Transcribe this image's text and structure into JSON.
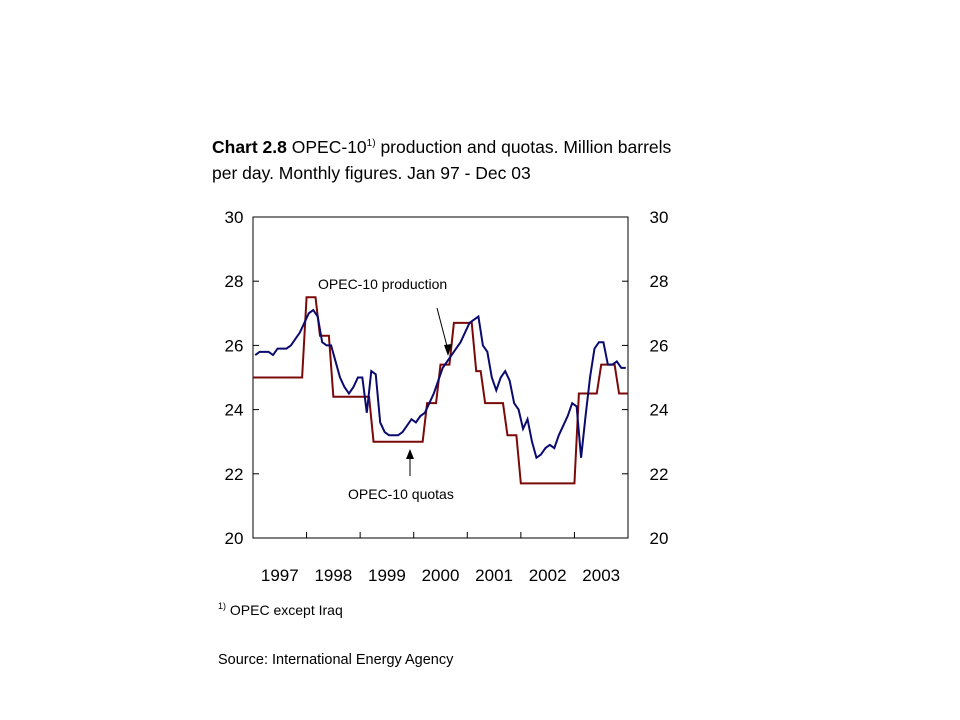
{
  "title": {
    "bold": "Chart 2.8",
    "pre": "OPEC-10",
    "sup": "1)",
    "rest": "production and quotas. Million barrels per day. Monthly figures. Jan 97 - Dec 03"
  },
  "footnote": {
    "sup": "1)",
    "text": "OPEC except Iraq"
  },
  "source": "Source: International Energy Agency",
  "colors": {
    "production": "#0a0a6e",
    "quotas": "#7a0a0a",
    "axis": "#000000"
  },
  "chart_data": {
    "type": "line",
    "x_start": "1997-01",
    "x_end": "2003-12",
    "x_ticks": [
      "1997",
      "1998",
      "1999",
      "2000",
      "2001",
      "2002",
      "2003"
    ],
    "y_ticks": [
      20,
      22,
      24,
      26,
      28,
      30
    ],
    "ylim": [
      20,
      30
    ],
    "grid": false,
    "annotations": [
      "OPEC-10 production",
      "OPEC-10 quotas"
    ],
    "series": [
      {
        "name": "OPEC-10 production",
        "values": [
          25.7,
          25.8,
          25.8,
          25.8,
          25.7,
          25.9,
          25.9,
          25.9,
          26.0,
          26.2,
          26.4,
          26.7,
          27.0,
          27.1,
          26.9,
          26.1,
          26.0,
          26.0,
          25.5,
          25.0,
          24.7,
          24.5,
          24.7,
          25.0,
          25.0,
          23.9,
          25.2,
          25.1,
          23.6,
          23.3,
          23.2,
          23.2,
          23.2,
          23.3,
          23.5,
          23.7,
          23.6,
          23.8,
          23.9,
          24.2,
          24.5,
          24.9,
          25.3,
          25.5,
          25.7,
          25.9,
          26.1,
          26.4,
          26.7,
          26.8,
          26.9,
          26.0,
          25.8,
          25.0,
          24.6,
          25.0,
          25.2,
          24.9,
          24.2,
          24.0,
          23.4,
          23.7,
          23.0,
          22.5,
          22.6,
          22.8,
          22.9,
          22.8,
          23.2,
          23.5,
          23.8,
          24.2,
          24.1,
          22.5,
          23.8,
          25.0,
          25.9,
          26.1,
          26.1,
          25.4,
          25.4,
          25.5,
          25.3,
          25.3
        ]
      },
      {
        "name": "OPEC-10 quotas",
        "values": [
          25.0,
          25.0,
          25.0,
          25.0,
          25.0,
          25.0,
          25.0,
          25.0,
          25.0,
          25.0,
          25.0,
          25.0,
          27.5,
          27.5,
          27.5,
          26.3,
          26.3,
          26.3,
          24.4,
          24.4,
          24.4,
          24.4,
          24.4,
          24.4,
          24.4,
          24.4,
          24.4,
          23.0,
          23.0,
          23.0,
          23.0,
          23.0,
          23.0,
          23.0,
          23.0,
          23.0,
          23.0,
          23.0,
          23.0,
          24.2,
          24.2,
          24.2,
          25.4,
          25.4,
          25.4,
          26.7,
          26.7,
          26.7,
          26.7,
          26.7,
          25.2,
          25.2,
          24.2,
          24.2,
          24.2,
          24.2,
          24.2,
          23.2,
          23.2,
          23.2,
          21.7,
          21.7,
          21.7,
          21.7,
          21.7,
          21.7,
          21.7,
          21.7,
          21.7,
          21.7,
          21.7,
          21.7,
          21.7,
          24.5,
          24.5,
          24.5,
          24.5,
          24.5,
          25.4,
          25.4,
          25.4,
          25.4,
          24.5,
          24.5
        ]
      }
    ]
  }
}
